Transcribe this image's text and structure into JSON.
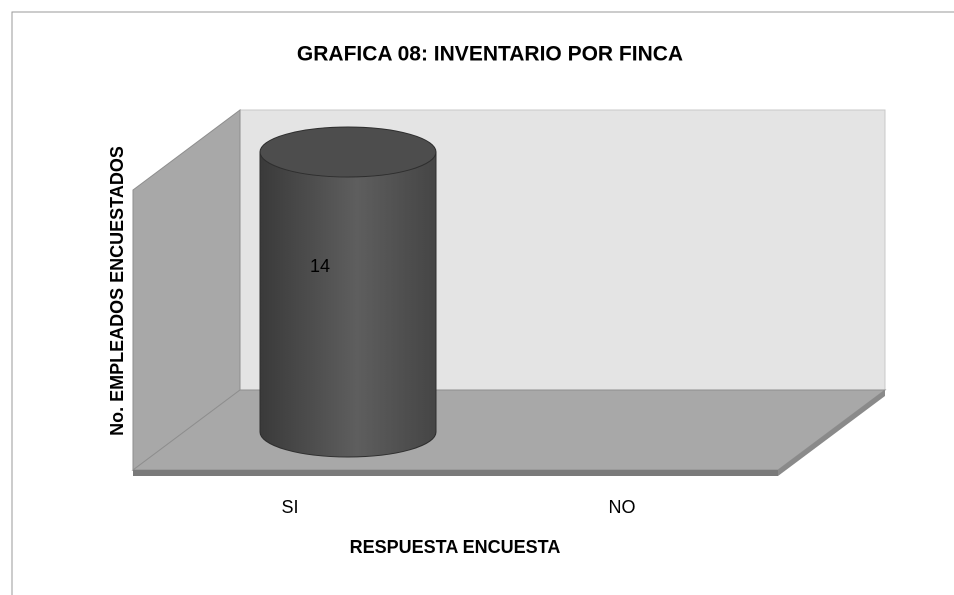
{
  "chart_data": {
    "type": "cylinder3d",
    "title": "GRAFICA 08: INVENTARIO POR FINCA",
    "y_label": "No. EMPLEADOS ENCUESTADOS",
    "x_label": "RESPUESTA ENCUESTA",
    "categories": [
      "SI",
      "NO"
    ],
    "values": [
      14,
      0
    ],
    "color": "#4d4d4d",
    "ylim": [
      0,
      15
    ]
  }
}
